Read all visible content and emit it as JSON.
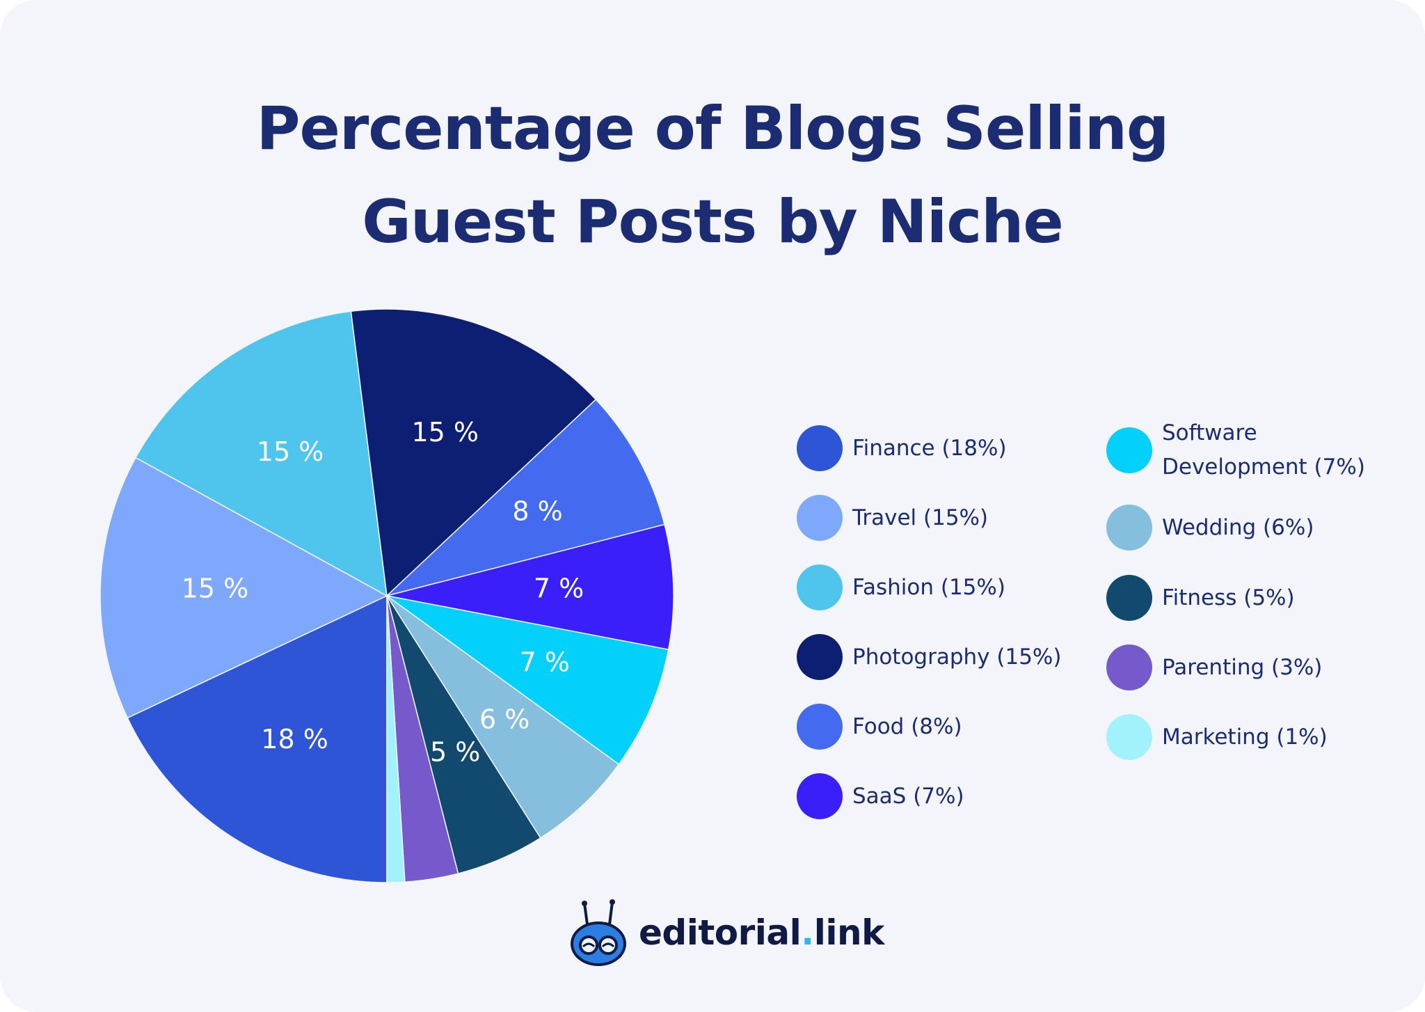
{
  "chart_data": {
    "type": "pie",
    "title": [
      "Percentage of Blogs Selling",
      "Guest Posts by Niche"
    ],
    "slices": [
      {
        "name": "Finance",
        "legend": "Finance (18%)",
        "value": 18,
        "label": "18 %",
        "color": "#2d55d6"
      },
      {
        "name": "Travel",
        "legend": "Travel (15%)",
        "value": 15,
        "label": "15 %",
        "color": "#7ea8fc"
      },
      {
        "name": "Fashion",
        "legend": "Fashion (15%)",
        "value": 15,
        "label": "15 %",
        "color": "#4fc5ee"
      },
      {
        "name": "Photography",
        "legend": "Photography (15%)",
        "value": 15,
        "label": "15 %",
        "color": "#0c1f72"
      },
      {
        "name": "Food",
        "legend": "Food (8%)",
        "value": 8,
        "label": "8 %",
        "color": "#446bef"
      },
      {
        "name": "SaaS",
        "legend": "SaaS (7%)",
        "value": 7,
        "label": "7 %",
        "color": "#3a1ff8"
      },
      {
        "name": "Software Development",
        "legend": "Software\nDevelopment (7%)",
        "value": 7,
        "label": "7 %",
        "color": "#03d0fb"
      },
      {
        "name": "Wedding",
        "legend": "Wedding (6%)",
        "value": 6,
        "label": "6 %",
        "color": "#86bedd"
      },
      {
        "name": "Fitness",
        "legend": "Fitness (5%)",
        "value": 5,
        "label": "5 %",
        "color": "#114a6e"
      },
      {
        "name": "Parenting",
        "legend": "Parenting (3%)",
        "value": 3,
        "label": "",
        "color": "#765acc"
      },
      {
        "name": "Marketing",
        "legend": "Marketing (1%)",
        "value": 1,
        "label": "",
        "color": "#a2f2fb"
      }
    ],
    "legend_placement": "right"
  },
  "brand": {
    "logo_text_main": "editorial",
    "logo_text_dot": ".",
    "logo_text_tail": "link",
    "logo_icon": "robot-mascot-icon"
  }
}
